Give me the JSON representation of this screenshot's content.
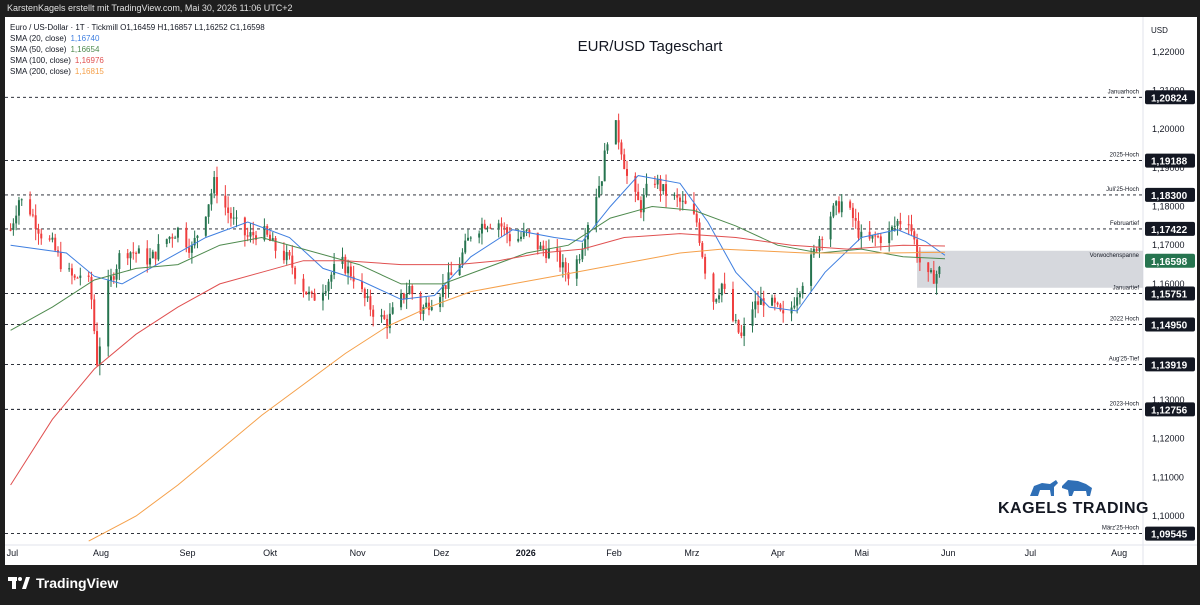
{
  "header": {
    "topline": "KarstenKagels erstellt mit TradingView.com, Mai 30, 2026 11:06 UTC+2",
    "symbol_line": "Euro / US-Dollar · 1T · Tickmill  O1,16459  H1,16857  L1,16252  C1,16598",
    "sma": [
      {
        "label": "SMA (20, close)",
        "value": "1,16740",
        "color": "#3f7fe0"
      },
      {
        "label": "SMA (50, close)",
        "value": "1,16654",
        "color": "#4e8a4e"
      },
      {
        "label": "SMA (100, close)",
        "value": "1,16976",
        "color": "#e05050"
      },
      {
        "label": "SMA (200, close)",
        "value": "1,16815",
        "color": "#f5a04a"
      }
    ]
  },
  "footer": {
    "brand": "TradingView"
  },
  "logo": {
    "text": "KAGELS TRADING"
  },
  "chart_data": {
    "type": "candlestick",
    "title": "EUR/USD Tageschart",
    "currency_label": "USD",
    "ylim": [
      1.0925,
      1.229
    ],
    "y_ticks": [
      "1,22000",
      "1,21000",
      "1,20000",
      "1,19000",
      "1,18000",
      "1,17000",
      "1,16000",
      "1,15000",
      "1,14000",
      "1,13000",
      "1,12000",
      "1,11000",
      "1,10000"
    ],
    "y_tick_values": [
      1.22,
      1.21,
      1.2,
      1.19,
      1.18,
      1.17,
      1.16,
      1.15,
      1.14,
      1.13,
      1.12,
      1.11,
      1.1
    ],
    "x_labels": [
      {
        "label": "Jul",
        "day": 0
      },
      {
        "label": "Aug",
        "day": 31
      },
      {
        "label": "Sep",
        "day": 62
      },
      {
        "label": "Okt",
        "day": 92
      },
      {
        "label": "Nov",
        "day": 123
      },
      {
        "label": "Dez",
        "day": 153
      },
      {
        "label": "2026",
        "day": 184
      },
      {
        "label": "Feb",
        "day": 215
      },
      {
        "label": "Mrz",
        "day": 243
      },
      {
        "label": "Apr",
        "day": 274
      },
      {
        "label": "Mai",
        "day": 304
      },
      {
        "label": "Jun",
        "day": 335
      },
      {
        "label": "Jul",
        "day": 365
      },
      {
        "label": "Aug",
        "day": 396
      }
    ],
    "x_range_days": [
      -2,
      406
    ],
    "levels": [
      {
        "name": "Januarhoch",
        "value": 1.20824,
        "label": "1,20824"
      },
      {
        "name": "2025-Hoch",
        "value": 1.19188,
        "label": "1,19188"
      },
      {
        "name": "Juli'25-Hoch",
        "value": 1.183,
        "label": "1,18300"
      },
      {
        "name": "Februartief",
        "value": 1.17422,
        "label": "1,17422"
      },
      {
        "name": "Vorwochenspanne",
        "value": 1.16598,
        "label": "1,16598",
        "current": true
      },
      {
        "name": "Januartief",
        "value": 1.15751,
        "label": "1,15751"
      },
      {
        "name": "2022 Hoch",
        "value": 1.1495,
        "label": "1,14950"
      },
      {
        "name": "Aug'25-Tief",
        "value": 1.13919,
        "label": "1,13919"
      },
      {
        "name": "2023-Hoch",
        "value": 1.12756,
        "label": "1,12756"
      },
      {
        "name": "März'25-Hoch",
        "value": 1.09545,
        "label": "1,09545"
      }
    ],
    "previous_week_range": {
      "high": 1.16857,
      "low": 1.159,
      "from_day": 325,
      "to_day": 335
    },
    "anchors": [
      [
        0,
        1.174
      ],
      [
        3,
        1.182
      ],
      [
        7,
        1.179
      ],
      [
        11,
        1.173
      ],
      [
        15,
        1.17
      ],
      [
        19,
        1.164
      ],
      [
        23,
        1.161
      ],
      [
        27,
        1.164
      ],
      [
        29,
        1.156
      ],
      [
        31,
        1.14
      ],
      [
        35,
        1.159
      ],
      [
        40,
        1.169
      ],
      [
        45,
        1.168
      ],
      [
        50,
        1.166
      ],
      [
        55,
        1.171
      ],
      [
        60,
        1.174
      ],
      [
        65,
        1.169
      ],
      [
        70,
        1.179
      ],
      [
        73,
        1.186
      ],
      [
        76,
        1.181
      ],
      [
        80,
        1.176
      ],
      [
        85,
        1.172
      ],
      [
        90,
        1.174
      ],
      [
        95,
        1.169
      ],
      [
        100,
        1.166
      ],
      [
        104,
        1.16
      ],
      [
        108,
        1.156
      ],
      [
        113,
        1.16
      ],
      [
        118,
        1.166
      ],
      [
        123,
        1.162
      ],
      [
        127,
        1.156
      ],
      [
        131,
        1.152
      ],
      [
        135,
        1.15
      ],
      [
        139,
        1.155
      ],
      [
        143,
        1.159
      ],
      [
        147,
        1.153
      ],
      [
        151,
        1.156
      ],
      [
        155,
        1.159
      ],
      [
        160,
        1.164
      ],
      [
        165,
        1.173
      ],
      [
        170,
        1.176
      ],
      [
        175,
        1.176
      ],
      [
        180,
        1.171
      ],
      [
        185,
        1.173
      ],
      [
        190,
        1.169
      ],
      [
        195,
        1.168
      ],
      [
        198,
        1.164
      ],
      [
        201,
        1.162
      ],
      [
        204,
        1.168
      ],
      [
        208,
        1.179
      ],
      [
        212,
        1.188
      ],
      [
        214,
        1.198
      ],
      [
        216,
        1.203
      ],
      [
        219,
        1.195
      ],
      [
        222,
        1.184
      ],
      [
        226,
        1.18
      ],
      [
        230,
        1.188
      ],
      [
        234,
        1.184
      ],
      [
        238,
        1.182
      ],
      [
        242,
        1.18
      ],
      [
        246,
        1.176
      ],
      [
        249,
        1.164
      ],
      [
        252,
        1.156
      ],
      [
        255,
        1.16
      ],
      [
        258,
        1.152
      ],
      [
        262,
        1.146
      ],
      [
        266,
        1.154
      ],
      [
        270,
        1.156
      ],
      [
        274,
        1.154
      ],
      [
        278,
        1.15
      ],
      [
        282,
        1.158
      ],
      [
        286,
        1.164
      ],
      [
        290,
        1.172
      ],
      [
        294,
        1.178
      ],
      [
        298,
        1.181
      ],
      [
        302,
        1.177
      ],
      [
        306,
        1.17
      ],
      [
        310,
        1.172
      ],
      [
        314,
        1.172
      ],
      [
        318,
        1.176
      ],
      [
        322,
        1.177
      ],
      [
        325,
        1.168
      ],
      [
        328,
        1.161
      ],
      [
        331,
        1.162
      ],
      [
        334,
        1.164
      ],
      [
        335,
        1.166
      ]
    ],
    "ma_series": [
      {
        "name": "SMA 20",
        "color": "#3f7fe0",
        "points": [
          [
            0,
            1.17
          ],
          [
            20,
            1.168
          ],
          [
            30,
            1.162
          ],
          [
            40,
            1.16
          ],
          [
            55,
            1.166
          ],
          [
            70,
            1.172
          ],
          [
            85,
            1.176
          ],
          [
            100,
            1.172
          ],
          [
            112,
            1.164
          ],
          [
            125,
            1.161
          ],
          [
            140,
            1.156
          ],
          [
            152,
            1.157
          ],
          [
            165,
            1.167
          ],
          [
            180,
            1.174
          ],
          [
            195,
            1.172
          ],
          [
            205,
            1.171
          ],
          [
            215,
            1.18
          ],
          [
            225,
            1.188
          ],
          [
            240,
            1.186
          ],
          [
            250,
            1.176
          ],
          [
            260,
            1.163
          ],
          [
            272,
            1.154
          ],
          [
            282,
            1.153
          ],
          [
            292,
            1.163
          ],
          [
            305,
            1.172
          ],
          [
            318,
            1.174
          ],
          [
            328,
            1.171
          ],
          [
            335,
            1.1674
          ]
        ]
      },
      {
        "name": "SMA 50",
        "color": "#4e8a4e",
        "points": [
          [
            0,
            1.148
          ],
          [
            15,
            1.154
          ],
          [
            30,
            1.161
          ],
          [
            45,
            1.164
          ],
          [
            60,
            1.165
          ],
          [
            75,
            1.17
          ],
          [
            90,
            1.172
          ],
          [
            105,
            1.169
          ],
          [
            125,
            1.165
          ],
          [
            140,
            1.16
          ],
          [
            155,
            1.16
          ],
          [
            170,
            1.164
          ],
          [
            185,
            1.168
          ],
          [
            200,
            1.17
          ],
          [
            215,
            1.177
          ],
          [
            230,
            1.18
          ],
          [
            245,
            1.179
          ],
          [
            260,
            1.175
          ],
          [
            275,
            1.17
          ],
          [
            290,
            1.168
          ],
          [
            305,
            1.169
          ],
          [
            320,
            1.167
          ],
          [
            335,
            1.1665
          ]
        ]
      },
      {
        "name": "SMA 100",
        "color": "#e05050",
        "points": [
          [
            0,
            1.108
          ],
          [
            15,
            1.125
          ],
          [
            30,
            1.138
          ],
          [
            45,
            1.147
          ],
          [
            60,
            1.154
          ],
          [
            75,
            1.16
          ],
          [
            90,
            1.163
          ],
          [
            105,
            1.166
          ],
          [
            120,
            1.166
          ],
          [
            140,
            1.165
          ],
          [
            160,
            1.165
          ],
          [
            175,
            1.166
          ],
          [
            190,
            1.168
          ],
          [
            205,
            1.169
          ],
          [
            220,
            1.172
          ],
          [
            240,
            1.173
          ],
          [
            260,
            1.172
          ],
          [
            280,
            1.17
          ],
          [
            300,
            1.169
          ],
          [
            320,
            1.17
          ],
          [
            335,
            1.1698
          ]
        ]
      },
      {
        "name": "SMA 200",
        "color": "#f5a04a",
        "points": [
          [
            28,
            1.0935
          ],
          [
            45,
            1.1
          ],
          [
            60,
            1.108
          ],
          [
            75,
            1.117
          ],
          [
            90,
            1.126
          ],
          [
            105,
            1.134
          ],
          [
            120,
            1.142
          ],
          [
            135,
            1.149
          ],
          [
            150,
            1.154
          ],
          [
            165,
            1.158
          ],
          [
            180,
            1.16
          ],
          [
            195,
            1.162
          ],
          [
            210,
            1.164
          ],
          [
            225,
            1.166
          ],
          [
            240,
            1.168
          ],
          [
            255,
            1.169
          ],
          [
            270,
            1.1685
          ],
          [
            285,
            1.168
          ],
          [
            300,
            1.168
          ],
          [
            315,
            1.168
          ],
          [
            335,
            1.1682
          ]
        ]
      }
    ],
    "up_color": "#26744f",
    "down_color": "#ef3d3d",
    "grid": false
  }
}
